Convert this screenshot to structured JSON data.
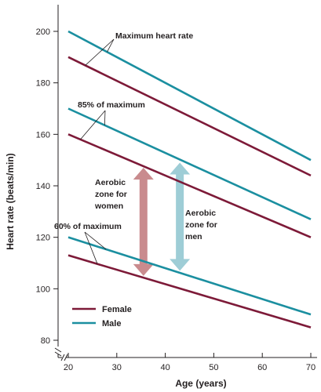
{
  "chart_data": {
    "type": "line",
    "xlabel": "Age (years)",
    "ylabel": "Heart rate (beats/min)",
    "xlim": [
      20,
      70
    ],
    "ylim": [
      80,
      200
    ],
    "axis_break": true,
    "grid": false,
    "legend_position": "bottom-left",
    "x_ticks": [
      20,
      30,
      40,
      50,
      60,
      70
    ],
    "y_ticks": [
      80,
      100,
      120,
      140,
      160,
      180,
      200
    ],
    "x": [
      20,
      70
    ],
    "series": [
      {
        "name": "Male",
        "group": "male",
        "level": "max",
        "values": [
          200,
          150
        ],
        "color": "#1b8fa0"
      },
      {
        "name": "Female",
        "group": "female",
        "level": "max",
        "values": [
          190,
          144
        ],
        "color": "#7d1a38"
      },
      {
        "name": "Male",
        "group": "male",
        "level": "85",
        "values": [
          170,
          127
        ],
        "color": "#1b8fa0"
      },
      {
        "name": "Female",
        "group": "female",
        "level": "85",
        "values": [
          160,
          120
        ],
        "color": "#7d1a38"
      },
      {
        "name": "Male",
        "group": "male",
        "level": "60",
        "values": [
          120,
          90
        ],
        "color": "#1b8fa0"
      },
      {
        "name": "Female",
        "group": "female",
        "level": "60",
        "values": [
          113,
          85
        ],
        "color": "#7d1a38"
      }
    ],
    "legend": [
      {
        "label": "Female",
        "color": "#7d1a38"
      },
      {
        "label": "Male",
        "color": "#1b8fa0"
      }
    ],
    "annotations": {
      "max": "Maximum heart rate",
      "p85": "85% of maximum",
      "p60": "60% of maximum",
      "women_zone": [
        "Aerobic",
        "zone for",
        "women"
      ],
      "men_zone": [
        "Aerobic",
        "zone for",
        "men"
      ]
    },
    "zones": [
      {
        "group": "women",
        "x": 35.5,
        "from": 105,
        "to": 147,
        "color": "#c98b8e"
      },
      {
        "group": "men",
        "x": 43,
        "from": 107,
        "to": 149,
        "color": "#9ecdd6"
      }
    ]
  }
}
